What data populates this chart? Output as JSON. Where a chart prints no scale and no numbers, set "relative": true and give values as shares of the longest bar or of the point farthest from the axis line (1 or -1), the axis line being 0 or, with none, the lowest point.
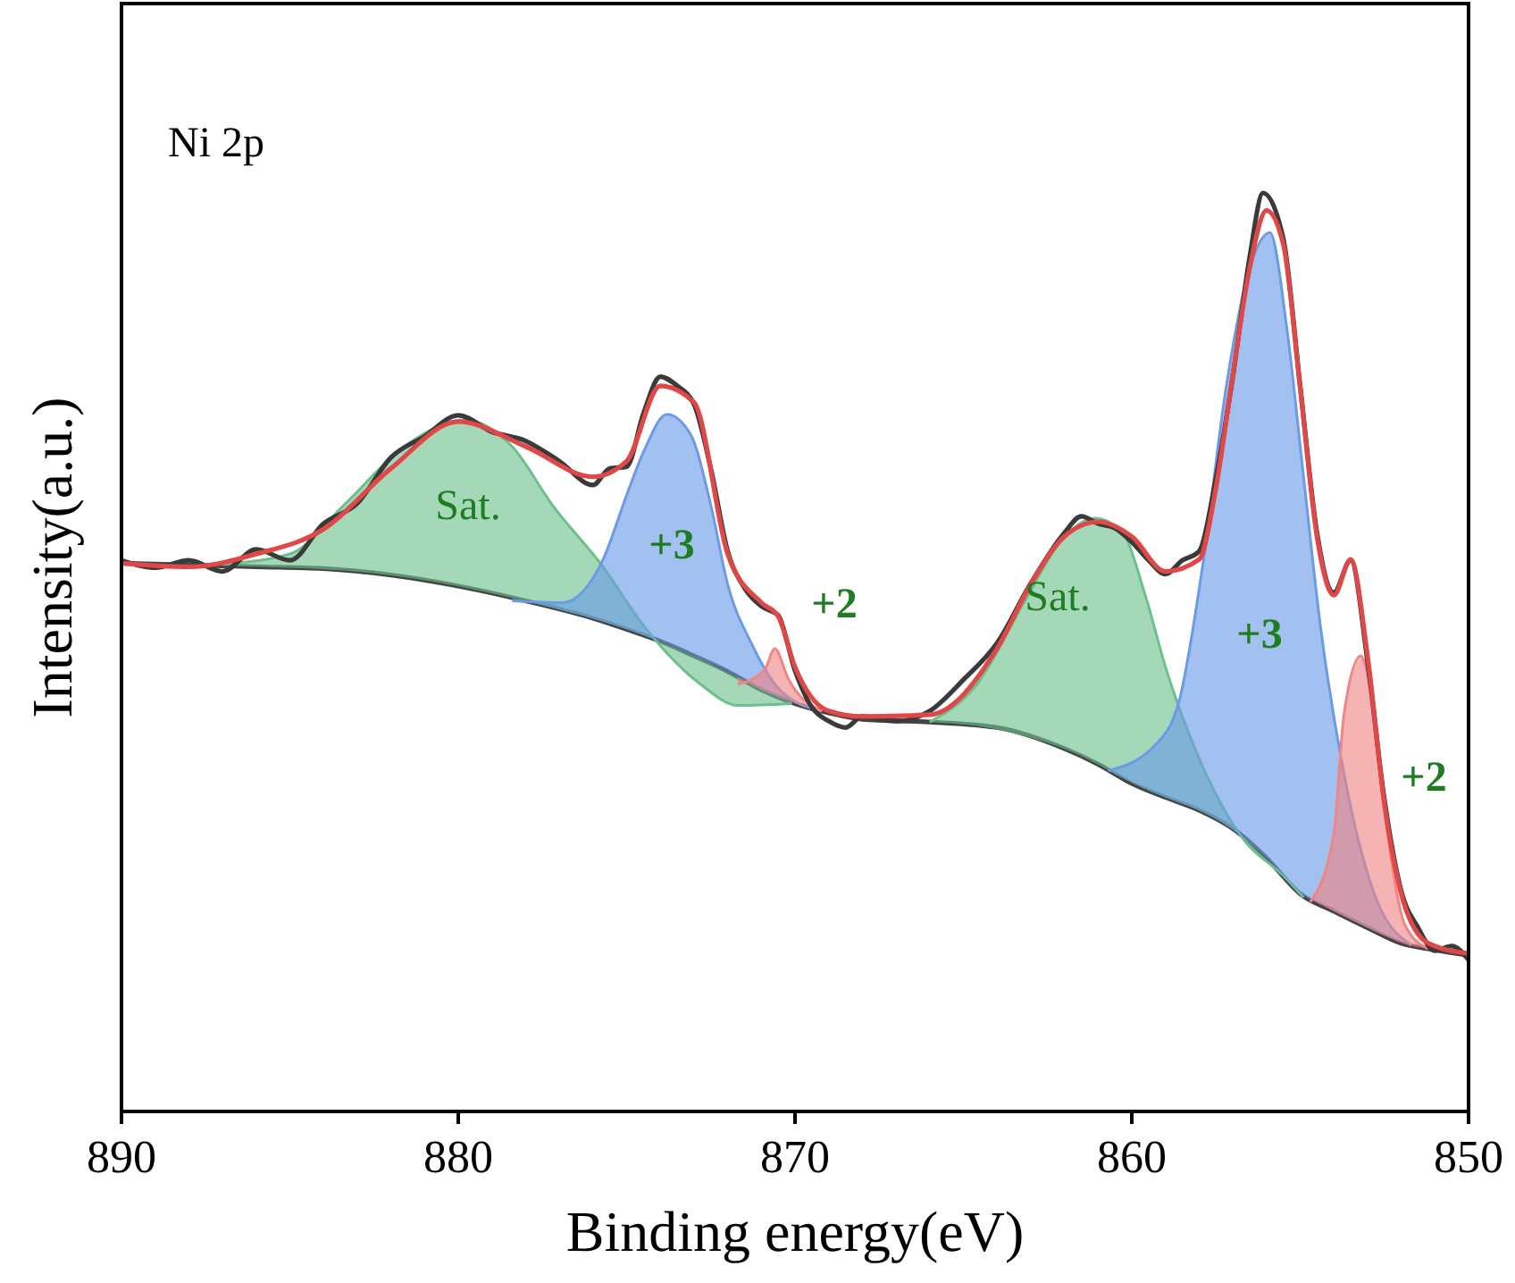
{
  "chart_data": {
    "type": "line",
    "relative": true,
    "xlabel": "Binding energy(eV)",
    "ylabel": "Intensity(a.u.)",
    "xlim": [
      890,
      850
    ],
    "xticks": [
      890,
      880,
      870,
      860,
      850
    ],
    "annotations": [
      "Ni 2p",
      "Sat.",
      "+3",
      "+2",
      "Sat.",
      "+3",
      "+2"
    ],
    "series": [
      {
        "color": "#444444",
        "x": [
          890,
          888,
          886,
          884,
          882,
          880,
          878,
          876,
          875,
          874,
          873,
          872,
          871,
          870,
          869,
          868,
          866,
          864,
          862,
          861,
          860,
          859,
          858,
          857,
          856,
          855,
          854,
          853,
          852,
          851,
          850
        ],
        "values": [
          0.597,
          0.595,
          0.593,
          0.591,
          0.584,
          0.572,
          0.556,
          0.537,
          0.525,
          0.512,
          0.496,
          0.479,
          0.459,
          0.444,
          0.434,
          0.427,
          0.424,
          0.418,
          0.395,
          0.378,
          0.357,
          0.342,
          0.328,
          0.308,
          0.276,
          0.237,
          0.218,
          0.2,
          0.183,
          0.176,
          0.17
        ]
      },
      {
        "type": "area",
        "color": "#6cc08c",
        "x": [
          887,
          885,
          883.4,
          881.6,
          879.8,
          878.4,
          877.2,
          875.7,
          874.5,
          872.8,
          871.7,
          870.1
        ],
        "values": [
          0.596,
          0.607,
          0.66,
          0.724,
          0.753,
          0.724,
          0.66,
          0.593,
          0.529,
          0.465,
          0.442,
          0.444
        ]
      },
      {
        "type": "area",
        "color": "#6b9be6",
        "x": [
          878.4,
          876.9,
          875.7,
          875,
          874.5,
          873.8,
          873.1,
          872.5,
          872,
          871.3,
          870.4,
          869.2
        ],
        "values": [
          0.556,
          0.554,
          0.601,
          0.671,
          0.718,
          0.759,
          0.737,
          0.66,
          0.574,
          0.51,
          0.457,
          0.436
        ]
      },
      {
        "type": "area",
        "color": "#ef8585",
        "x": [
          871.7,
          870.9,
          870.6,
          870.2,
          869.2
        ],
        "values": [
          0.465,
          0.481,
          0.504,
          0.471,
          0.436
        ]
      },
      {
        "type": "area",
        "color": "#6cc08c",
        "x": [
          866,
          864.6,
          863.2,
          862.1,
          861.1,
          860.3,
          859.6,
          859,
          858.1,
          856.8,
          855.4,
          854.9
        ],
        "values": [
          0.424,
          0.465,
          0.554,
          0.621,
          0.646,
          0.632,
          0.562,
          0.484,
          0.393,
          0.302,
          0.253,
          0.233
        ]
      },
      {
        "type": "area",
        "color": "#6b9be6",
        "x": [
          860.7,
          859.3,
          858.6,
          857.9,
          857.2,
          856.5,
          855.9,
          855.4,
          854.9,
          854.4,
          853.7,
          852.8,
          851.7
        ],
        "values": [
          0.371,
          0.399,
          0.446,
          0.593,
          0.788,
          0.918,
          0.957,
          0.854,
          0.691,
          0.529,
          0.368,
          0.237,
          0.181
        ]
      },
      {
        "type": "area",
        "color": "#ef8585",
        "x": [
          854.7,
          854,
          853.7,
          853.2,
          852.8,
          852.4,
          851.9,
          851.2
        ],
        "values": [
          0.228,
          0.302,
          0.432,
          0.496,
          0.432,
          0.302,
          0.204,
          0.177
        ]
      },
      {
        "color": "#3a3a3a",
        "x": [
          890,
          889,
          888,
          887,
          886,
          885,
          884,
          883,
          882,
          881,
          880,
          879,
          878,
          877,
          876,
          875.5,
          875,
          874.5,
          874,
          873.5,
          873,
          872.5,
          872,
          871.5,
          871,
          870.5,
          870,
          869.5,
          869,
          868.5,
          868,
          867,
          866,
          865,
          864,
          863,
          862,
          861.5,
          861,
          860.5,
          860,
          859.5,
          859,
          858.5,
          858,
          857.5,
          857,
          856.5,
          856.1,
          855.5,
          855,
          854.5,
          854,
          853.5,
          853,
          852.5,
          852,
          851.5,
          851,
          850.5,
          850
        ],
        "values": [
          0.6,
          0.592,
          0.6,
          0.588,
          0.612,
          0.6,
          0.64,
          0.662,
          0.712,
          0.735,
          0.758,
          0.74,
          0.73,
          0.708,
          0.682,
          0.7,
          0.702,
          0.76,
          0.8,
          0.79,
          0.77,
          0.7,
          0.61,
          0.57,
          0.55,
          0.54,
          0.48,
          0.44,
          0.425,
          0.418,
          0.43,
          0.425,
          0.436,
          0.47,
          0.51,
          0.575,
          0.63,
          0.648,
          0.64,
          0.635,
          0.62,
          0.6,
          0.585,
          0.6,
          0.61,
          0.69,
          0.8,
          0.93,
          1.0,
          0.95,
          0.79,
          0.63,
          0.565,
          0.6,
          0.49,
          0.34,
          0.24,
          0.2,
          0.175,
          0.18,
          0.165
        ]
      },
      {
        "color": "#e04848",
        "x": [
          890,
          888,
          886,
          884,
          882,
          880,
          878,
          876,
          875,
          874,
          873,
          872,
          871,
          870.5,
          870,
          869,
          868,
          866,
          864,
          863,
          862,
          861,
          860,
          859,
          858,
          857.5,
          857,
          856.5,
          856,
          855.5,
          855,
          854.5,
          854,
          853.5,
          853,
          852.5,
          852,
          851.5,
          851,
          850
        ],
        "values": [
          0.597,
          0.593,
          0.607,
          0.634,
          0.7,
          0.751,
          0.724,
          0.691,
          0.708,
          0.79,
          0.772,
          0.607,
          0.554,
          0.539,
          0.484,
          0.436,
          0.43,
          0.432,
          0.504,
          0.574,
          0.626,
          0.642,
          0.626,
          0.588,
          0.601,
          0.679,
          0.802,
          0.918,
          0.981,
          0.944,
          0.788,
          0.626,
          0.562,
          0.601,
          0.496,
          0.335,
          0.237,
          0.193,
          0.18,
          0.172
        ]
      }
    ]
  }
}
